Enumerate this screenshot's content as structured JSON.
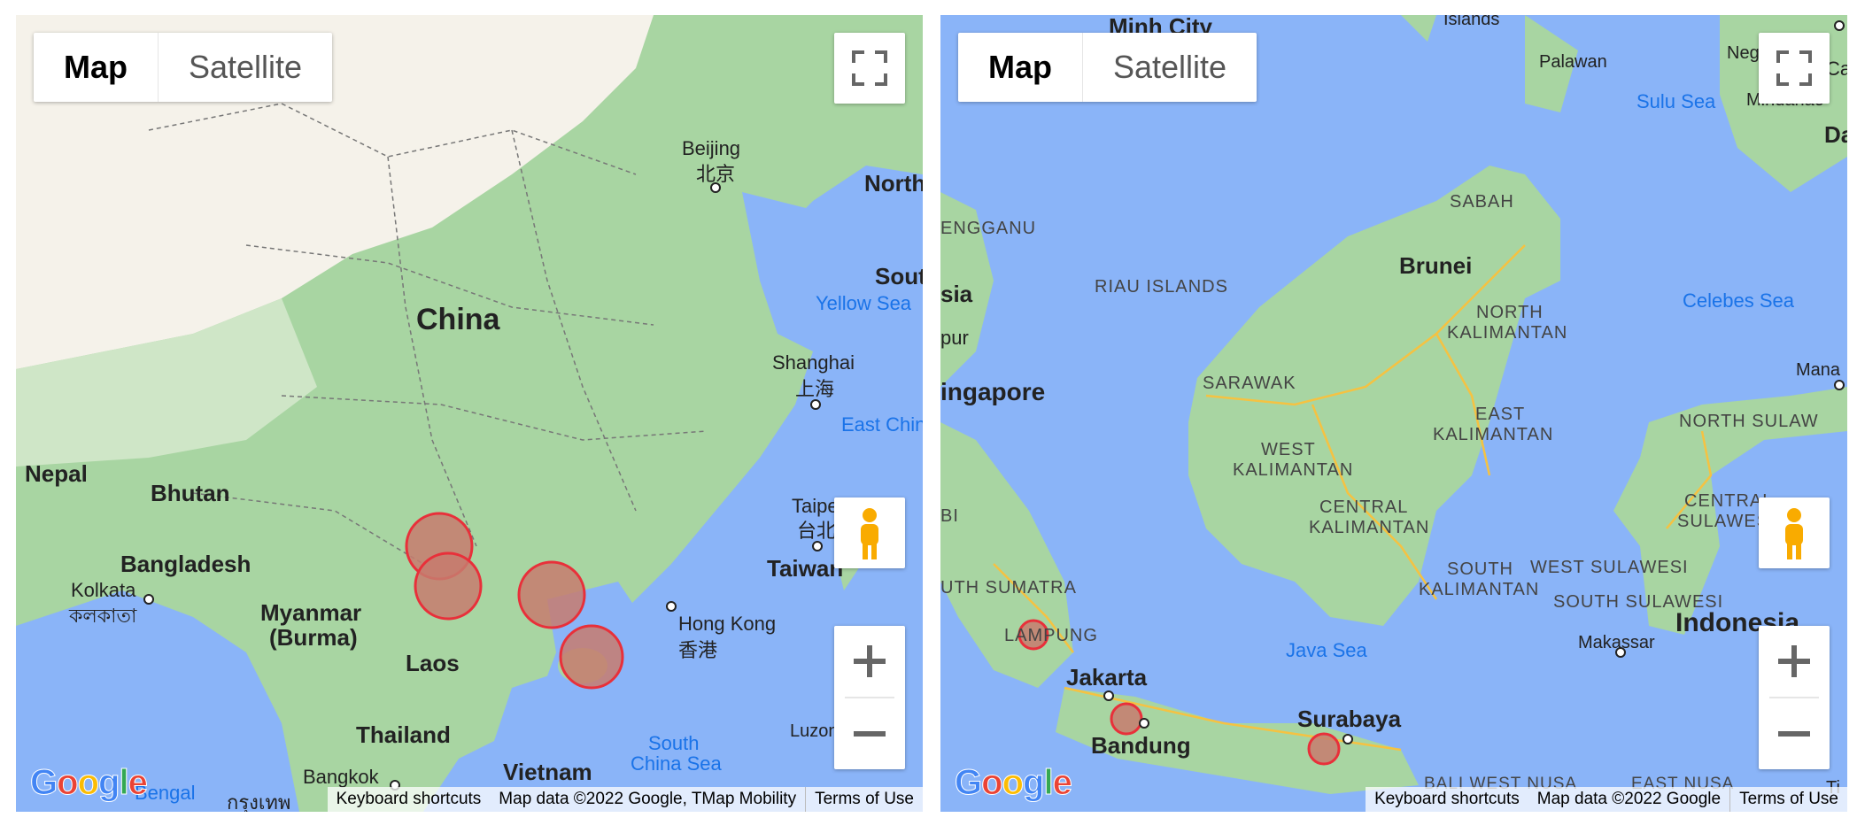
{
  "controls": {
    "map_label": "Map",
    "satellite_label": "Satellite"
  },
  "logo": "Google",
  "left_map": {
    "labels": {
      "beijing": "Beijing",
      "beijing_cn": "北京",
      "north": "North",
      "south": "Sout",
      "yellow_sea": "Yellow Sea",
      "china": "China",
      "shanghai": "Shanghai",
      "shanghai_cn": "上海",
      "east_china": "East Chin",
      "nepal": "Nepal",
      "bhutan": "Bhutan",
      "taipei": "Taipe",
      "taipei_cn": "台北",
      "taiwan": "Taiwan",
      "bangladesh": "Bangladesh",
      "kolkata": "Kolkata",
      "kolkata_bn": "কলকাতা",
      "myanmar": "Myanmar",
      "burma": "(Burma)",
      "hong_kong": "Hong Kong",
      "hong_kong_cn": "香港",
      "laos": "Laos",
      "thailand": "Thailand",
      "south_china_sea_1": "South",
      "south_china_sea_2": "China Sea",
      "luzon": "Luzon",
      "bangkok": "Bangkok",
      "bangkok_th": "กรุงเทพ",
      "bengal": "Bengal",
      "vietnam": "Vietnam"
    },
    "attribution": {
      "shortcuts": "Keyboard shortcuts",
      "data": "Map data ©2022 Google, TMap Mobility",
      "terms": "Terms of Use"
    }
  },
  "right_map": {
    "labels": {
      "minh_city": "Minh City",
      "islands": "Islands",
      "palawan": "Palawan",
      "sulu_sea": "Sulu Sea",
      "negros": "Neg",
      "mindanao": "Mindanao",
      "ca": "Ca",
      "da": "Da",
      "sabah": "SABAH",
      "terengganu": "ENGGANU",
      "brunei": "Brunei",
      "north_kalimantan_1": "NORTH",
      "north_kalimantan_2": "KALIMANTAN",
      "celebes_sea": "Celebes Sea",
      "riau": "RIAU ISLANDS",
      "sia": "sia",
      "pur": "pur",
      "sarawak": "SARAWAK",
      "manado": "Mana",
      "singapore": "ingapore",
      "east_kalimantan_1": "EAST",
      "east_kalimantan_2": "KALIMANTAN",
      "north_sulawesi": "NORTH SULAW",
      "west_kalimantan_1": "WEST",
      "west_kalimantan_2": "KALIMANTAN",
      "central_kalimantan_1": "CENTRAL",
      "central_kalimantan_2": "KALIMANTAN",
      "central_sulawesi_1": "CENTRAL",
      "central_sulawesi_2": "SULAWESI",
      "jambi": "BI",
      "south_kalimantan_1": "SOUTH",
      "south_kalimantan_2": "KALIMANTAN",
      "west_sulawesi": "WEST SULAWESI",
      "south_sumatra": "UTH SUMATRA",
      "south_sulawesi": "SOUTH SULAWESI",
      "indonesia": "Indonesia",
      "lampung": "LAMPUNG",
      "makassar": "Makassar",
      "java_sea": "Java Sea",
      "jakarta": "Jakarta",
      "surabaya": "Surabaya",
      "bandung": "Bandung",
      "bali": "BALI WEST NUSA",
      "east_nusa": "EAST NUSA",
      "ti": "Ti"
    },
    "attribution": {
      "shortcuts": "Keyboard shortcuts",
      "data": "Map data ©2022 Google",
      "terms": "Terms of Use"
    }
  },
  "colors": {
    "water": "#8ab4f8",
    "land": "#a8d5a2",
    "desert": "#f5f2ea",
    "marker_fill": "#c77b6e",
    "marker_stroke": "#e8303a"
  }
}
